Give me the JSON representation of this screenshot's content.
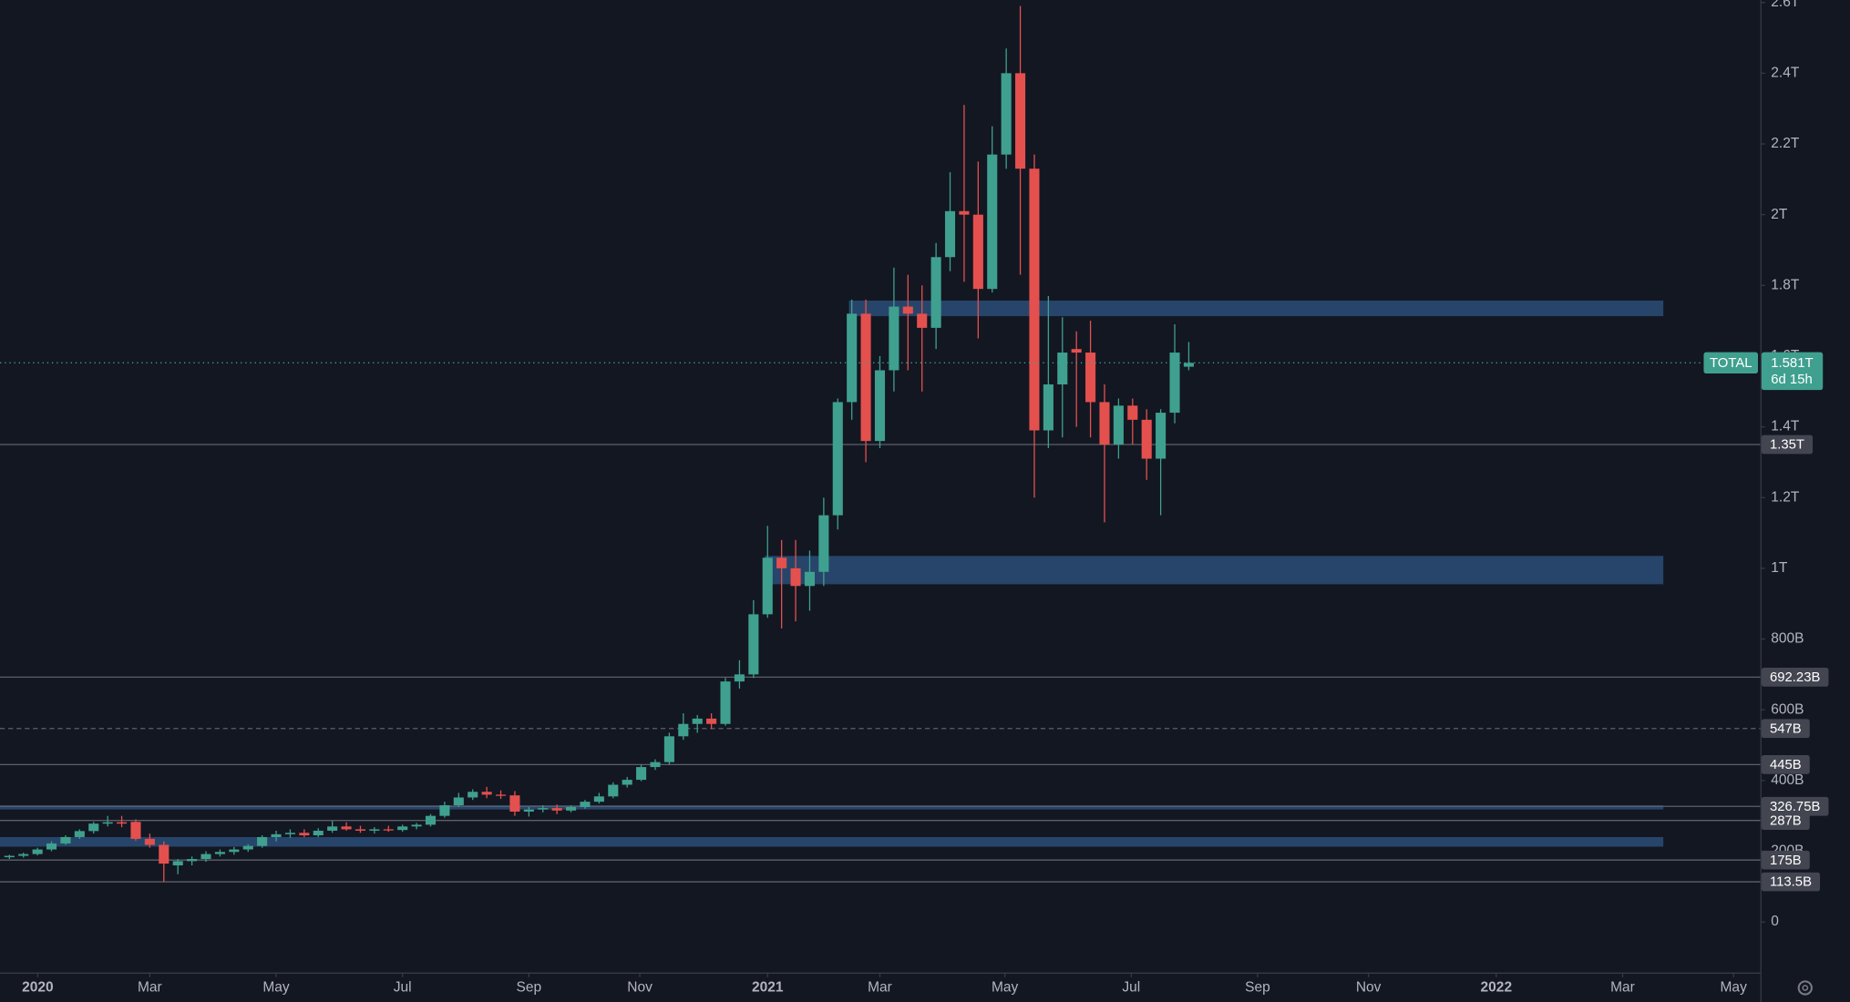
{
  "chart_data": {
    "type": "candlestick",
    "up_color": "#3fa08f",
    "down_color": "#e4504e",
    "zone_color": "#2a4a72",
    "ylim": [
      -143,
      2607
    ],
    "yticks": [
      {
        "value": 0,
        "label": "0"
      },
      {
        "value": 200,
        "label": "200B"
      },
      {
        "value": 400,
        "label": "400B"
      },
      {
        "value": 600,
        "label": "600B"
      },
      {
        "value": 800,
        "label": "800B"
      },
      {
        "value": 1000,
        "label": "1T"
      },
      {
        "value": 1200,
        "label": "1.2T"
      },
      {
        "value": 1400,
        "label": "1.4T"
      },
      {
        "value": 1600,
        "label": "1.6T"
      },
      {
        "value": 1800,
        "label": "1.8T"
      },
      {
        "value": 2000,
        "label": "2T"
      },
      {
        "value": 2200,
        "label": "2.2T"
      },
      {
        "value": 2400,
        "label": "2.4T"
      },
      {
        "value": 2600,
        "label": "2.6T"
      }
    ],
    "xlim": [
      -0.67,
      124.71
    ],
    "xticks": [
      {
        "value": 2.02,
        "label": "2020"
      },
      {
        "value": 10.0,
        "label": "Mar"
      },
      {
        "value": 19.0,
        "label": "May"
      },
      {
        "value": 28.0,
        "label": "Jul"
      },
      {
        "value": 37.0,
        "label": "Sep"
      },
      {
        "value": 44.9,
        "label": "Nov"
      },
      {
        "value": 54.0,
        "label": "2021"
      },
      {
        "value": 62.0,
        "label": "Mar"
      },
      {
        "value": 70.9,
        "label": "May"
      },
      {
        "value": 79.9,
        "label": "Jul"
      },
      {
        "value": 88.9,
        "label": "Sep"
      },
      {
        "value": 96.8,
        "label": "Nov"
      },
      {
        "value": 105.9,
        "label": "2022"
      },
      {
        "value": 114.9,
        "label": "Mar"
      },
      {
        "value": 122.8,
        "label": "May"
      }
    ],
    "candles": {
      "open": [
        183,
        187,
        192,
        205,
        222,
        240,
        257,
        278,
        282,
        283,
        235,
        218,
        160,
        172,
        178,
        192,
        198,
        205,
        215,
        240,
        248,
        252,
        245,
        258,
        270,
        262,
        258,
        262,
        260,
        270,
        275,
        300,
        330,
        352,
        368,
        360,
        358,
        312,
        318,
        322,
        315,
        325,
        340,
        355,
        388,
        402,
        438,
        452,
        525,
        560,
        575,
        560,
        680,
        700,
        870,
        1030,
        1000,
        950,
        990,
        1150,
        1470,
        1720,
        1360,
        1560,
        1740,
        1720,
        1680,
        1880,
        2010,
        2000,
        1790,
        2170,
        2400,
        2130,
        1390,
        1520,
        1620,
        1610,
        1470,
        1350,
        1460,
        1420,
        1310,
        1440,
        1570
      ],
      "high": [
        190,
        196,
        210,
        228,
        245,
        262,
        283,
        300,
        300,
        290,
        250,
        228,
        178,
        185,
        200,
        205,
        212,
        220,
        245,
        258,
        262,
        262,
        265,
        285,
        282,
        272,
        268,
        272,
        275,
        280,
        305,
        340,
        365,
        375,
        382,
        372,
        370,
        325,
        330,
        332,
        330,
        345,
        365,
        395,
        410,
        445,
        460,
        535,
        590,
        585,
        590,
        690,
        740,
        910,
        1120,
        1080,
        1080,
        1050,
        1200,
        1480,
        1760,
        1760,
        1600,
        1850,
        1830,
        1800,
        1920,
        2120,
        2310,
        2150,
        2250,
        2470,
        2590,
        2170,
        1770,
        1710,
        1670,
        1700,
        1520,
        1480,
        1480,
        1450,
        1450,
        1690,
        1640
      ],
      "low": [
        178,
        182,
        188,
        200,
        218,
        235,
        250,
        270,
        268,
        230,
        210,
        113,
        135,
        160,
        170,
        185,
        190,
        198,
        210,
        228,
        238,
        240,
        240,
        252,
        258,
        252,
        250,
        255,
        255,
        262,
        270,
        295,
        325,
        345,
        350,
        348,
        300,
        298,
        310,
        305,
        310,
        320,
        335,
        350,
        380,
        398,
        430,
        445,
        515,
        535,
        545,
        555,
        660,
        690,
        860,
        830,
        850,
        880,
        950,
        1110,
        1420,
        1300,
        1340,
        1500,
        1560,
        1500,
        1620,
        1840,
        1810,
        1650,
        1780,
        2130,
        1830,
        1200,
        1340,
        1370,
        1400,
        1370,
        1130,
        1310,
        1350,
        1250,
        1150,
        1410,
        1560
      ],
      "close": [
        187,
        192,
        205,
        222,
        240,
        257,
        278,
        282,
        278,
        235,
        218,
        165,
        172,
        178,
        192,
        198,
        205,
        215,
        240,
        248,
        252,
        245,
        258,
        270,
        262,
        258,
        262,
        260,
        270,
        275,
        300,
        330,
        352,
        368,
        360,
        358,
        312,
        318,
        322,
        315,
        325,
        340,
        355,
        388,
        402,
        438,
        452,
        525,
        560,
        575,
        560,
        680,
        700,
        870,
        1030,
        1000,
        950,
        990,
        1150,
        1470,
        1720,
        1360,
        1560,
        1740,
        1720,
        1680,
        1880,
        2010,
        2000,
        1790,
        2170,
        2400,
        2130,
        1390,
        1520,
        1610,
        1610,
        1470,
        1350,
        1460,
        1420,
        1310,
        1440,
        1610,
        1581
      ]
    },
    "zones": [
      {
        "low": 1713,
        "high": 1757,
        "start": 59.8,
        "end": 117.8
      },
      {
        "low": 955,
        "high": 1035,
        "start": 53.8,
        "end": 117.8
      },
      {
        "low": 318,
        "high": 330,
        "start": -0.67,
        "end": 117.8
      },
      {
        "low": 213,
        "high": 240,
        "start": -0.67,
        "end": 117.8
      }
    ],
    "levels": [
      {
        "value": 1350,
        "label": "1.35T"
      },
      {
        "value": 692.23,
        "label": "692.23B"
      },
      {
        "value": 547,
        "label": "547B",
        "dashed": true
      },
      {
        "value": 445,
        "label": "445B"
      },
      {
        "value": 326.75,
        "label": "326.75B"
      },
      {
        "value": 287,
        "label": "287B"
      },
      {
        "value": 175,
        "label": "175B"
      },
      {
        "value": 113.5,
        "label": "113.5B"
      }
    ],
    "current": {
      "name": "TOTAL",
      "value": 1581,
      "label": "1.581T",
      "countdown": "6d 15h",
      "color": "#3fa08f"
    }
  }
}
